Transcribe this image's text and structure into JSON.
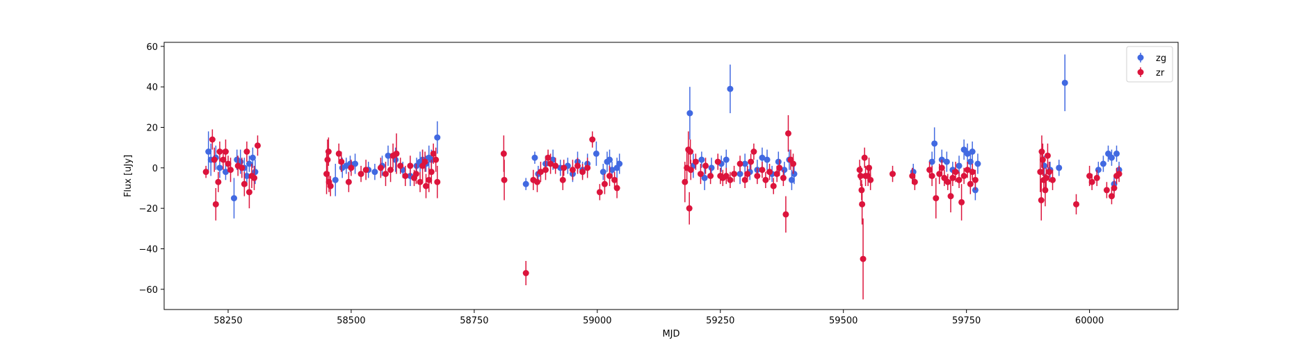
{
  "chart_data": {
    "type": "scatter",
    "error_bars": true,
    "xlabel": "MJD",
    "ylabel": "Flux [uJy]",
    "xlim": [
      58120,
      60180
    ],
    "ylim": [
      -70,
      62
    ],
    "xticks": [
      58250,
      58500,
      58750,
      59000,
      59250,
      59500,
      59750,
      60000
    ],
    "yticks": [
      -60,
      -40,
      -20,
      0,
      20,
      40,
      60
    ],
    "grid": false,
    "legend_position": "upper-right",
    "series": [
      {
        "name": "zg",
        "color": "#4169e1",
        "points": [
          [
            58210,
            8,
            10
          ],
          [
            58215,
            4,
            8
          ],
          [
            58225,
            5,
            6
          ],
          [
            58233,
            0,
            5
          ],
          [
            58245,
            -2,
            4
          ],
          [
            58262,
            -15,
            10
          ],
          [
            58268,
            4,
            5
          ],
          [
            58275,
            3,
            6
          ],
          [
            58283,
            0,
            5
          ],
          [
            58288,
            -4,
            5
          ],
          [
            58293,
            2,
            4
          ],
          [
            58300,
            5,
            5
          ],
          [
            58305,
            -2,
            6
          ],
          [
            58468,
            -6,
            8
          ],
          [
            58482,
            0,
            5
          ],
          [
            58490,
            1,
            4
          ],
          [
            58498,
            2,
            4
          ],
          [
            58508,
            2,
            5
          ],
          [
            58535,
            -1,
            4
          ],
          [
            58548,
            -2,
            4
          ],
          [
            58563,
            1,
            5
          ],
          [
            58575,
            6,
            5
          ],
          [
            58590,
            4,
            6
          ],
          [
            58605,
            -1,
            4
          ],
          [
            58620,
            -4,
            5
          ],
          [
            58633,
            1,
            4
          ],
          [
            58640,
            3,
            5
          ],
          [
            58645,
            4,
            5
          ],
          [
            58652,
            2,
            4
          ],
          [
            58658,
            5,
            6
          ],
          [
            58663,
            4,
            5
          ],
          [
            58675,
            15,
            8
          ],
          [
            58855,
            -8,
            3
          ],
          [
            58873,
            5,
            3
          ],
          [
            58880,
            -3,
            4
          ],
          [
            58895,
            2,
            4
          ],
          [
            58910,
            4,
            5
          ],
          [
            58925,
            0,
            4
          ],
          [
            58940,
            1,
            4
          ],
          [
            58950,
            -3,
            4
          ],
          [
            58960,
            3,
            5
          ],
          [
            58970,
            -1,
            4
          ],
          [
            58980,
            2,
            5
          ],
          [
            58998,
            7,
            6
          ],
          [
            59012,
            -2,
            4
          ],
          [
            59020,
            3,
            5
          ],
          [
            59025,
            4,
            5
          ],
          [
            59030,
            -1,
            4
          ],
          [
            59040,
            0,
            5
          ],
          [
            59045,
            2,
            5
          ],
          [
            59188,
            27,
            13
          ],
          [
            59195,
            1,
            6
          ],
          [
            59212,
            4,
            4
          ],
          [
            59218,
            -5,
            6
          ],
          [
            59232,
            0,
            5
          ],
          [
            59252,
            2,
            4
          ],
          [
            59262,
            4,
            5
          ],
          [
            59270,
            39,
            12
          ],
          [
            59290,
            -3,
            5
          ],
          [
            59300,
            2,
            5
          ],
          [
            59310,
            -2,
            4
          ],
          [
            59325,
            -1,
            5
          ],
          [
            59335,
            5,
            5
          ],
          [
            59345,
            4,
            5
          ],
          [
            59355,
            -3,
            4
          ],
          [
            59368,
            3,
            5
          ],
          [
            59380,
            -1,
            4
          ],
          [
            59390,
            4,
            5
          ],
          [
            59395,
            -6,
            5
          ],
          [
            59400,
            -3,
            5
          ],
          [
            59642,
            -2,
            4
          ],
          [
            59680,
            3,
            5
          ],
          [
            59685,
            12,
            8
          ],
          [
            59700,
            4,
            5
          ],
          [
            59710,
            3,
            5
          ],
          [
            59722,
            -1,
            4
          ],
          [
            59735,
            1,
            5
          ],
          [
            59745,
            9,
            5
          ],
          [
            59752,
            7,
            5
          ],
          [
            59758,
            3,
            5
          ],
          [
            59762,
            8,
            5
          ],
          [
            59768,
            -11,
            5
          ],
          [
            59773,
            2,
            5
          ],
          [
            59908,
            1,
            5
          ],
          [
            59920,
            -1,
            4
          ],
          [
            59938,
            0,
            4
          ],
          [
            59950,
            42,
            14
          ],
          [
            60018,
            -1,
            4
          ],
          [
            60028,
            2,
            4
          ],
          [
            60038,
            7,
            4
          ],
          [
            60045,
            5,
            4
          ],
          [
            60050,
            -8,
            4
          ],
          [
            60055,
            7,
            4
          ],
          [
            60060,
            -1,
            4
          ]
        ]
      },
      {
        "name": "zr",
        "color": "#dc143c",
        "points": [
          [
            58205,
            -2,
            3
          ],
          [
            58218,
            14,
            5
          ],
          [
            58222,
            4,
            6
          ],
          [
            58225,
            -18,
            8
          ],
          [
            58230,
            -7,
            5
          ],
          [
            58233,
            8,
            5
          ],
          [
            58240,
            4,
            5
          ],
          [
            58245,
            8,
            6
          ],
          [
            58250,
            2,
            4
          ],
          [
            58255,
            -1,
            6
          ],
          [
            58270,
            1,
            5
          ],
          [
            58278,
            0,
            5
          ],
          [
            58283,
            -8,
            6
          ],
          [
            58288,
            8,
            5
          ],
          [
            58293,
            -12,
            8
          ],
          [
            58298,
            -4,
            6
          ],
          [
            58303,
            -5,
            6
          ],
          [
            58310,
            11,
            5
          ],
          [
            58450,
            -3,
            10
          ],
          [
            58452,
            4,
            10
          ],
          [
            58454,
            8,
            7
          ],
          [
            58455,
            -7,
            5
          ],
          [
            58458,
            -9,
            5
          ],
          [
            58475,
            7,
            5
          ],
          [
            58480,
            3,
            5
          ],
          [
            58495,
            -7,
            5
          ],
          [
            58500,
            0,
            4
          ],
          [
            58520,
            -3,
            4
          ],
          [
            58530,
            -1,
            5
          ],
          [
            58560,
            0,
            5
          ],
          [
            58570,
            -3,
            6
          ],
          [
            58580,
            -1,
            6
          ],
          [
            58585,
            6,
            6
          ],
          [
            58592,
            7,
            10
          ],
          [
            58600,
            1,
            4
          ],
          [
            58610,
            -4,
            5
          ],
          [
            58620,
            1,
            5
          ],
          [
            58628,
            -5,
            4
          ],
          [
            58632,
            -3,
            5
          ],
          [
            58640,
            -7,
            5
          ],
          [
            58645,
            1,
            8
          ],
          [
            58650,
            3,
            5
          ],
          [
            58652,
            -9,
            6
          ],
          [
            58658,
            -6,
            6
          ],
          [
            58663,
            -2,
            6
          ],
          [
            58667,
            7,
            5
          ],
          [
            58672,
            4,
            6
          ],
          [
            58675,
            -7,
            8
          ],
          [
            58810,
            7,
            9
          ],
          [
            58811,
            -6,
            10
          ],
          [
            58855,
            -52,
            6
          ],
          [
            58870,
            -6,
            5
          ],
          [
            58878,
            -7,
            5
          ],
          [
            58885,
            -2,
            5
          ],
          [
            58895,
            -1,
            5
          ],
          [
            58900,
            5,
            4
          ],
          [
            58905,
            2,
            5
          ],
          [
            58915,
            1,
            4
          ],
          [
            58930,
            -6,
            5
          ],
          [
            58932,
            0,
            4
          ],
          [
            58950,
            -1,
            5
          ],
          [
            58960,
            1,
            4
          ],
          [
            58970,
            -2,
            4
          ],
          [
            58980,
            0,
            5
          ],
          [
            58990,
            14,
            4
          ],
          [
            59005,
            -12,
            4
          ],
          [
            59015,
            -8,
            5
          ],
          [
            59025,
            -4,
            5
          ],
          [
            59035,
            -6,
            4
          ],
          [
            59040,
            -10,
            5
          ],
          [
            59178,
            -7,
            10
          ],
          [
            59182,
            0,
            8
          ],
          [
            59185,
            9,
            9
          ],
          [
            59187,
            -20,
            8
          ],
          [
            59189,
            8,
            6
          ],
          [
            59190,
            -1,
            5
          ],
          [
            59200,
            3,
            4
          ],
          [
            59210,
            -3,
            5
          ],
          [
            59220,
            1,
            4
          ],
          [
            59230,
            -4,
            4
          ],
          [
            59245,
            3,
            4
          ],
          [
            59250,
            -4,
            4
          ],
          [
            59255,
            -5,
            4
          ],
          [
            59262,
            -4,
            4
          ],
          [
            59270,
            -6,
            4
          ],
          [
            59278,
            -3,
            4
          ],
          [
            59290,
            2,
            4
          ],
          [
            59300,
            -6,
            4
          ],
          [
            59305,
            -3,
            4
          ],
          [
            59312,
            3,
            4
          ],
          [
            59318,
            8,
            4
          ],
          [
            59325,
            -4,
            4
          ],
          [
            59335,
            -1,
            4
          ],
          [
            59342,
            -6,
            4
          ],
          [
            59350,
            -2,
            4
          ],
          [
            59358,
            -9,
            4
          ],
          [
            59365,
            -3,
            4
          ],
          [
            59370,
            0,
            4
          ],
          [
            59378,
            -5,
            4
          ],
          [
            59383,
            -23,
            9
          ],
          [
            59388,
            17,
            9
          ],
          [
            59393,
            4,
            5
          ],
          [
            59398,
            2,
            5
          ],
          [
            59533,
            -1,
            5
          ],
          [
            59535,
            -4,
            5
          ],
          [
            59537,
            -11,
            5
          ],
          [
            59538,
            -18,
            10
          ],
          [
            59540,
            -45,
            20
          ],
          [
            59543,
            5,
            5
          ],
          [
            59545,
            -4,
            5
          ],
          [
            59550,
            -4,
            5
          ],
          [
            59552,
            0,
            5
          ],
          [
            59555,
            -6,
            5
          ],
          [
            59600,
            -3,
            4
          ],
          [
            59640,
            -4,
            4
          ],
          [
            59645,
            -7,
            4
          ],
          [
            59675,
            -1,
            4
          ],
          [
            59680,
            -4,
            5
          ],
          [
            59688,
            -15,
            10
          ],
          [
            59695,
            -3,
            5
          ],
          [
            59700,
            0,
            4
          ],
          [
            59705,
            -5,
            4
          ],
          [
            59712,
            -7,
            4
          ],
          [
            59718,
            -14,
            8
          ],
          [
            59722,
            -5,
            4
          ],
          [
            59728,
            -2,
            5
          ],
          [
            59735,
            -6,
            4
          ],
          [
            59740,
            -17,
            9
          ],
          [
            59745,
            -4,
            4
          ],
          [
            59752,
            -1,
            4
          ],
          [
            59758,
            -8,
            5
          ],
          [
            59762,
            -2,
            4
          ],
          [
            59768,
            -6,
            5
          ],
          [
            59900,
            -2,
            10
          ],
          [
            59902,
            -16,
            10
          ],
          [
            59903,
            8,
            8
          ],
          [
            59905,
            4,
            8
          ],
          [
            59907,
            -6,
            6
          ],
          [
            59910,
            -11,
            8
          ],
          [
            59912,
            -5,
            5
          ],
          [
            59915,
            6,
            6
          ],
          [
            59918,
            -2,
            5
          ],
          [
            59925,
            -6,
            5
          ],
          [
            59973,
            -18,
            5
          ],
          [
            60000,
            -4,
            5
          ],
          [
            60005,
            -7,
            4
          ],
          [
            60015,
            -5,
            4
          ],
          [
            60035,
            -11,
            4
          ],
          [
            60045,
            -14,
            4
          ],
          [
            60050,
            -10,
            4
          ],
          [
            60055,
            -4,
            4
          ],
          [
            60060,
            -3,
            4
          ]
        ]
      }
    ]
  }
}
